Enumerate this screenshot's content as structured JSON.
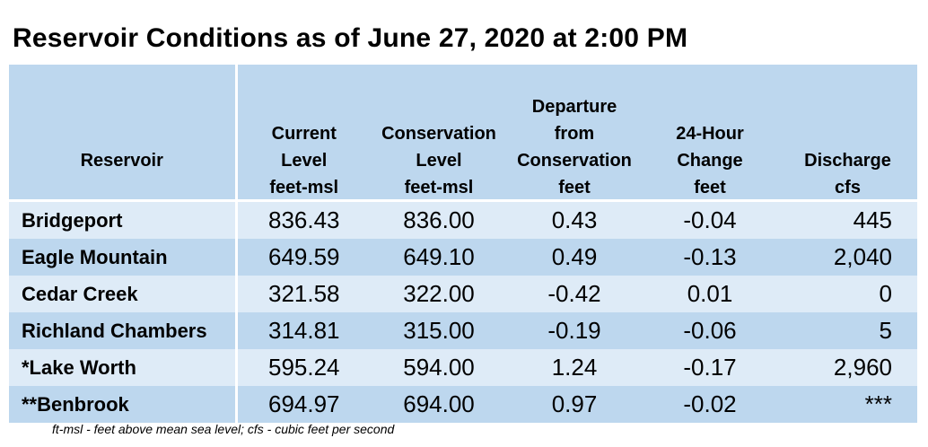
{
  "title": "Reservoir Conditions as of June 27, 2020 at 2:00 PM",
  "columns": [
    {
      "lines": [
        "Reservoir"
      ],
      "unit": ""
    },
    {
      "lines": [
        "Current",
        "Level"
      ],
      "unit": "feet-msl"
    },
    {
      "lines": [
        "Conservation",
        "Level"
      ],
      "unit": "feet-msl"
    },
    {
      "lines": [
        "Departure",
        "from",
        "Conservation"
      ],
      "unit": "feet"
    },
    {
      "lines": [
        "24-Hour",
        "Change"
      ],
      "unit": "feet"
    },
    {
      "lines": [
        "Discharge"
      ],
      "unit": "cfs"
    }
  ],
  "rows": [
    {
      "name": "Bridgeport",
      "current": "836.43",
      "conservation": "836.00",
      "departure": "0.43",
      "change": "-0.04",
      "discharge": "445"
    },
    {
      "name": "Eagle Mountain",
      "current": "649.59",
      "conservation": "649.10",
      "departure": "0.49",
      "change": "-0.13",
      "discharge": "2,040"
    },
    {
      "name": "Cedar Creek",
      "current": "321.58",
      "conservation": "322.00",
      "departure": "-0.42",
      "change": "0.01",
      "discharge": "0"
    },
    {
      "name": "Richland Chambers",
      "current": "314.81",
      "conservation": "315.00",
      "departure": "-0.19",
      "change": "-0.06",
      "discharge": "5"
    },
    {
      "name": "*Lake Worth",
      "current": "595.24",
      "conservation": "594.00",
      "departure": "1.24",
      "change": "-0.17",
      "discharge": "2,960"
    },
    {
      "name": "**Benbrook",
      "current": "694.97",
      "conservation": "694.00",
      "departure": "0.97",
      "change": "-0.02",
      "discharge": "***"
    }
  ],
  "footnote": "ft-msl - feet above mean sea level; cfs - cubic feet per second",
  "colors": {
    "header": "#bdd7ee",
    "row_light": "#deebf7",
    "row_dark": "#bdd7ee"
  }
}
